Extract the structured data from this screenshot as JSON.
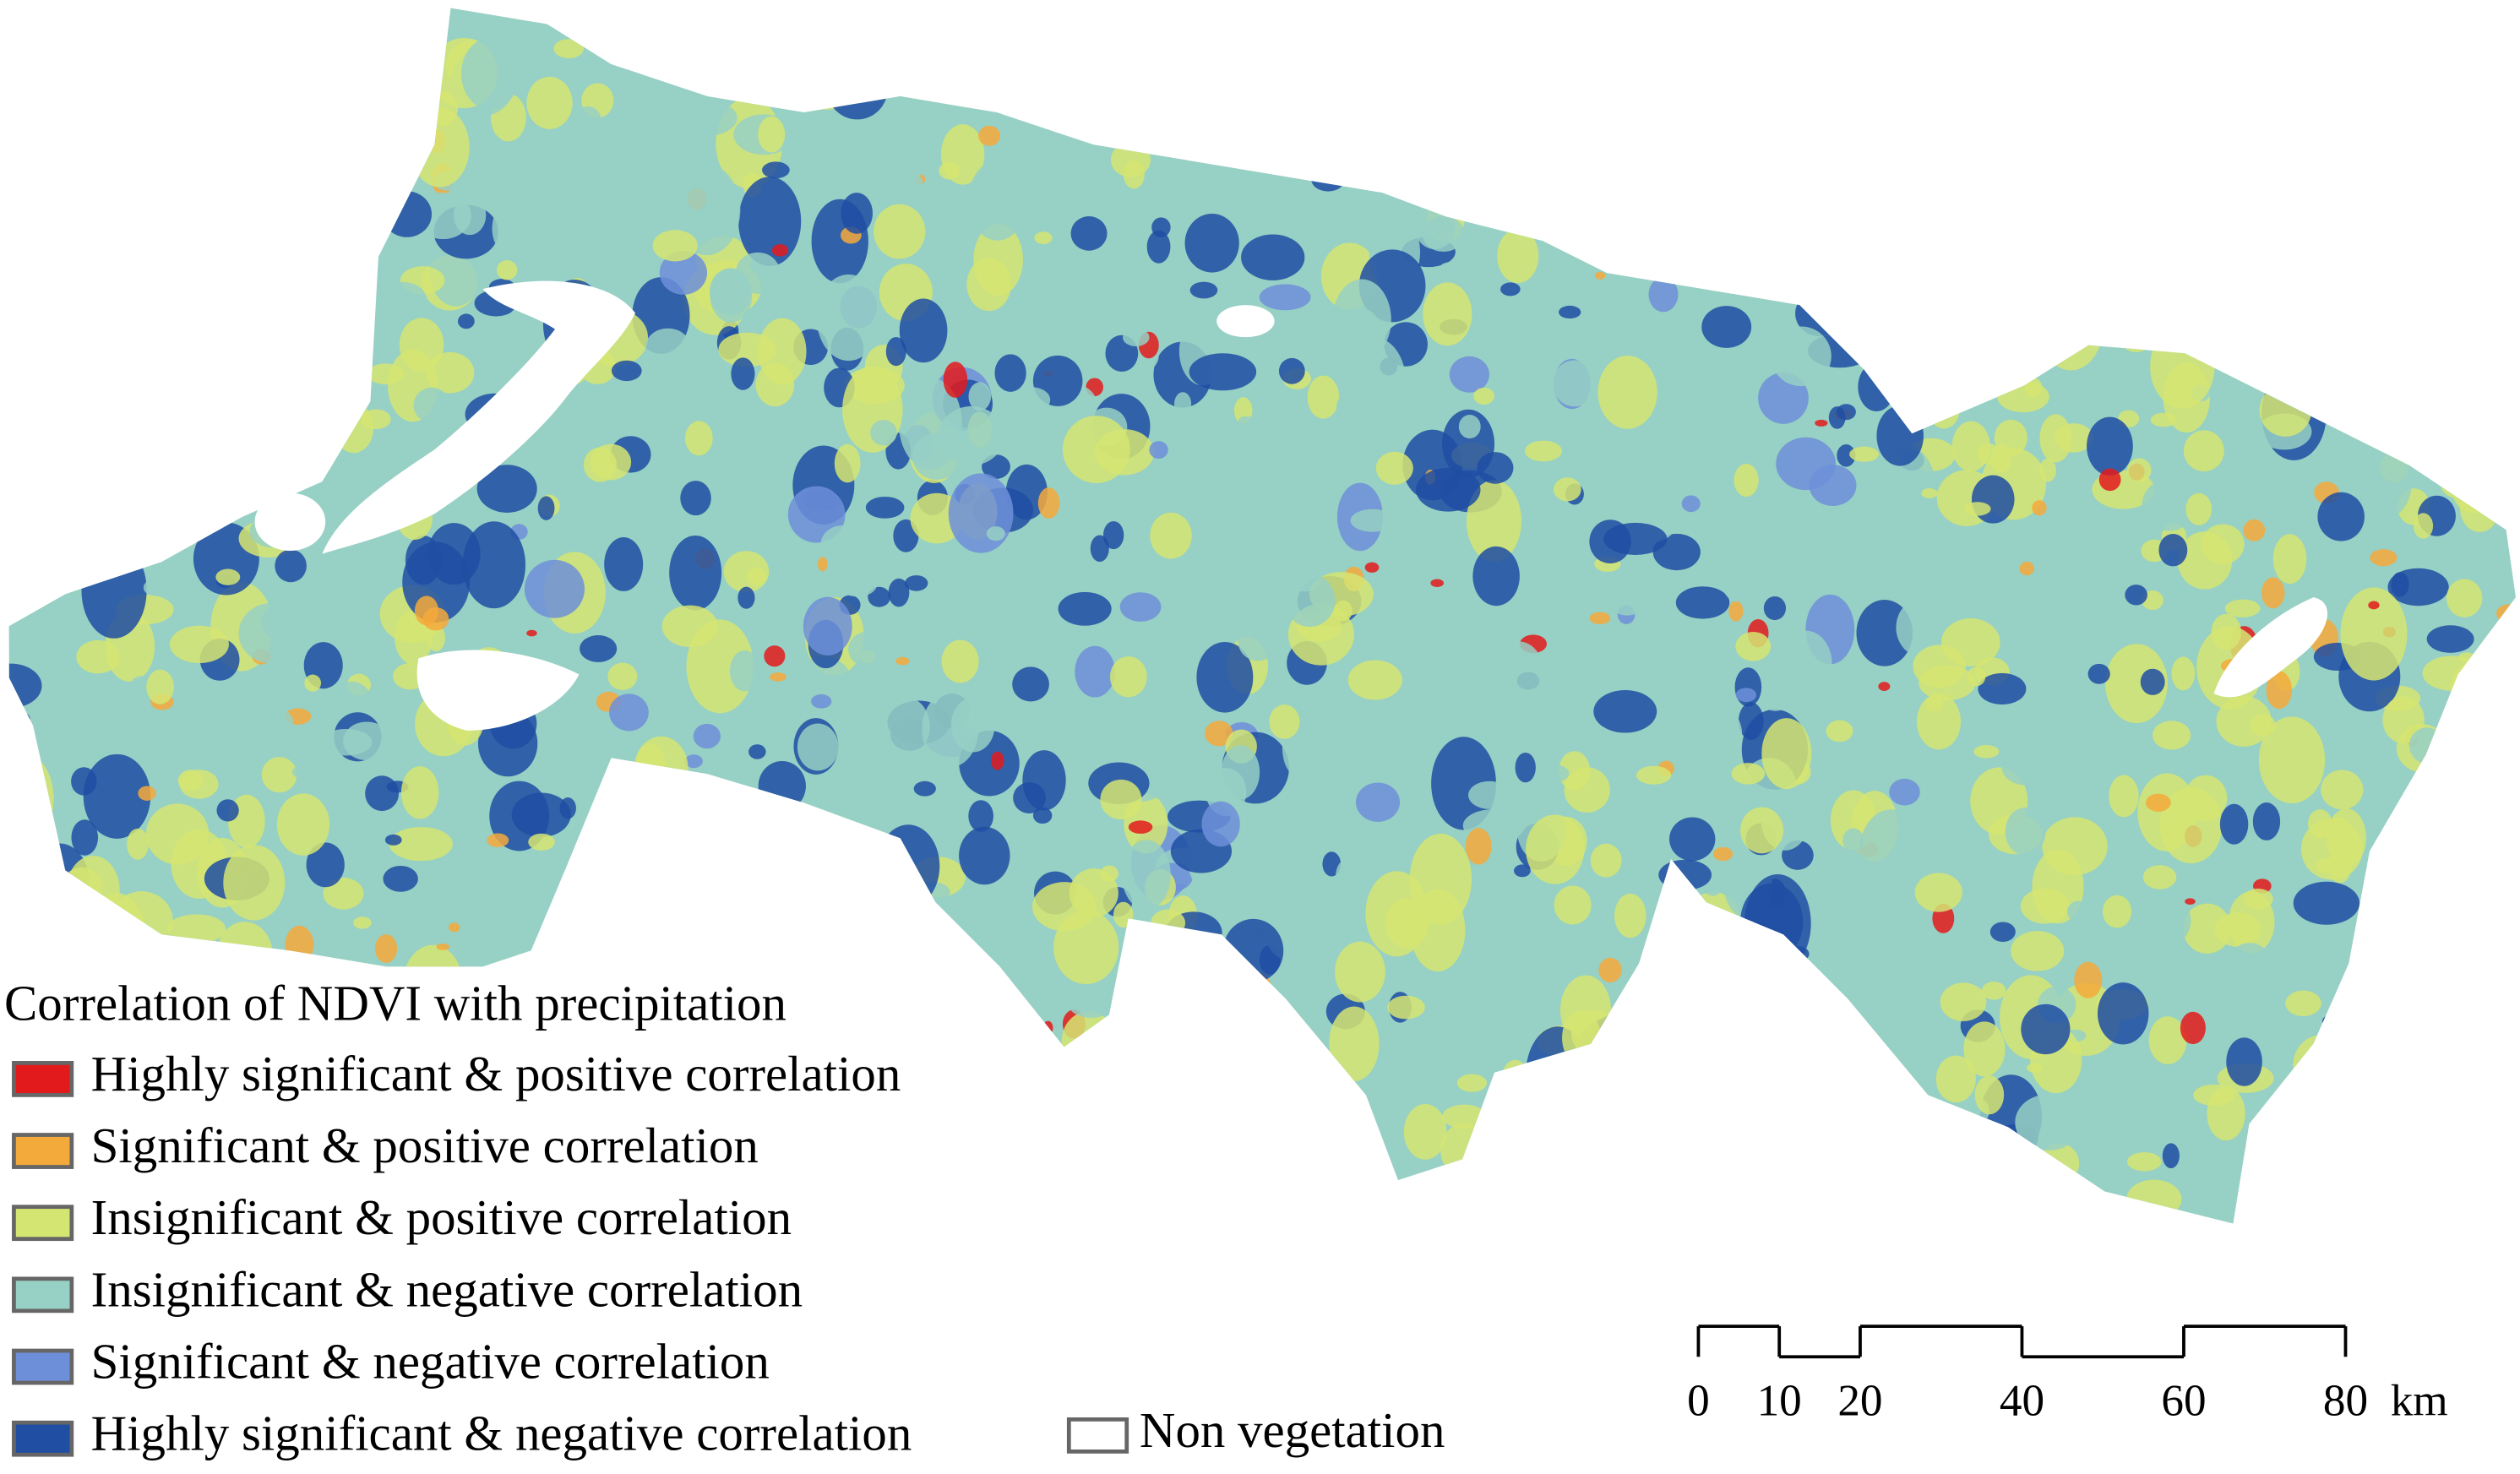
{
  "legend": {
    "title": "Correlation of NDVI with precipitation",
    "items": [
      {
        "label": "Highly significant & positive correlation",
        "color": "#e31a1c"
      },
      {
        "label": "Significant & positive correlation",
        "color": "#f4a93b"
      },
      {
        "label": "Insignificant & positive correlation",
        "color": "#d5e572"
      },
      {
        "label": "Insignificant & negative correlation",
        "color": "#97d0c4"
      },
      {
        "label": "Significant & negative correlation",
        "color": "#6d8fd9"
      },
      {
        "label": "Highly significant & negative correlation",
        "color": "#1f4ea3"
      }
    ],
    "non_vegetation": {
      "label": "Non vegetation",
      "color": "#ffffff"
    }
  },
  "scale_bar": {
    "ticks": [
      0,
      10,
      20,
      40,
      60,
      80
    ],
    "unit": "km"
  }
}
